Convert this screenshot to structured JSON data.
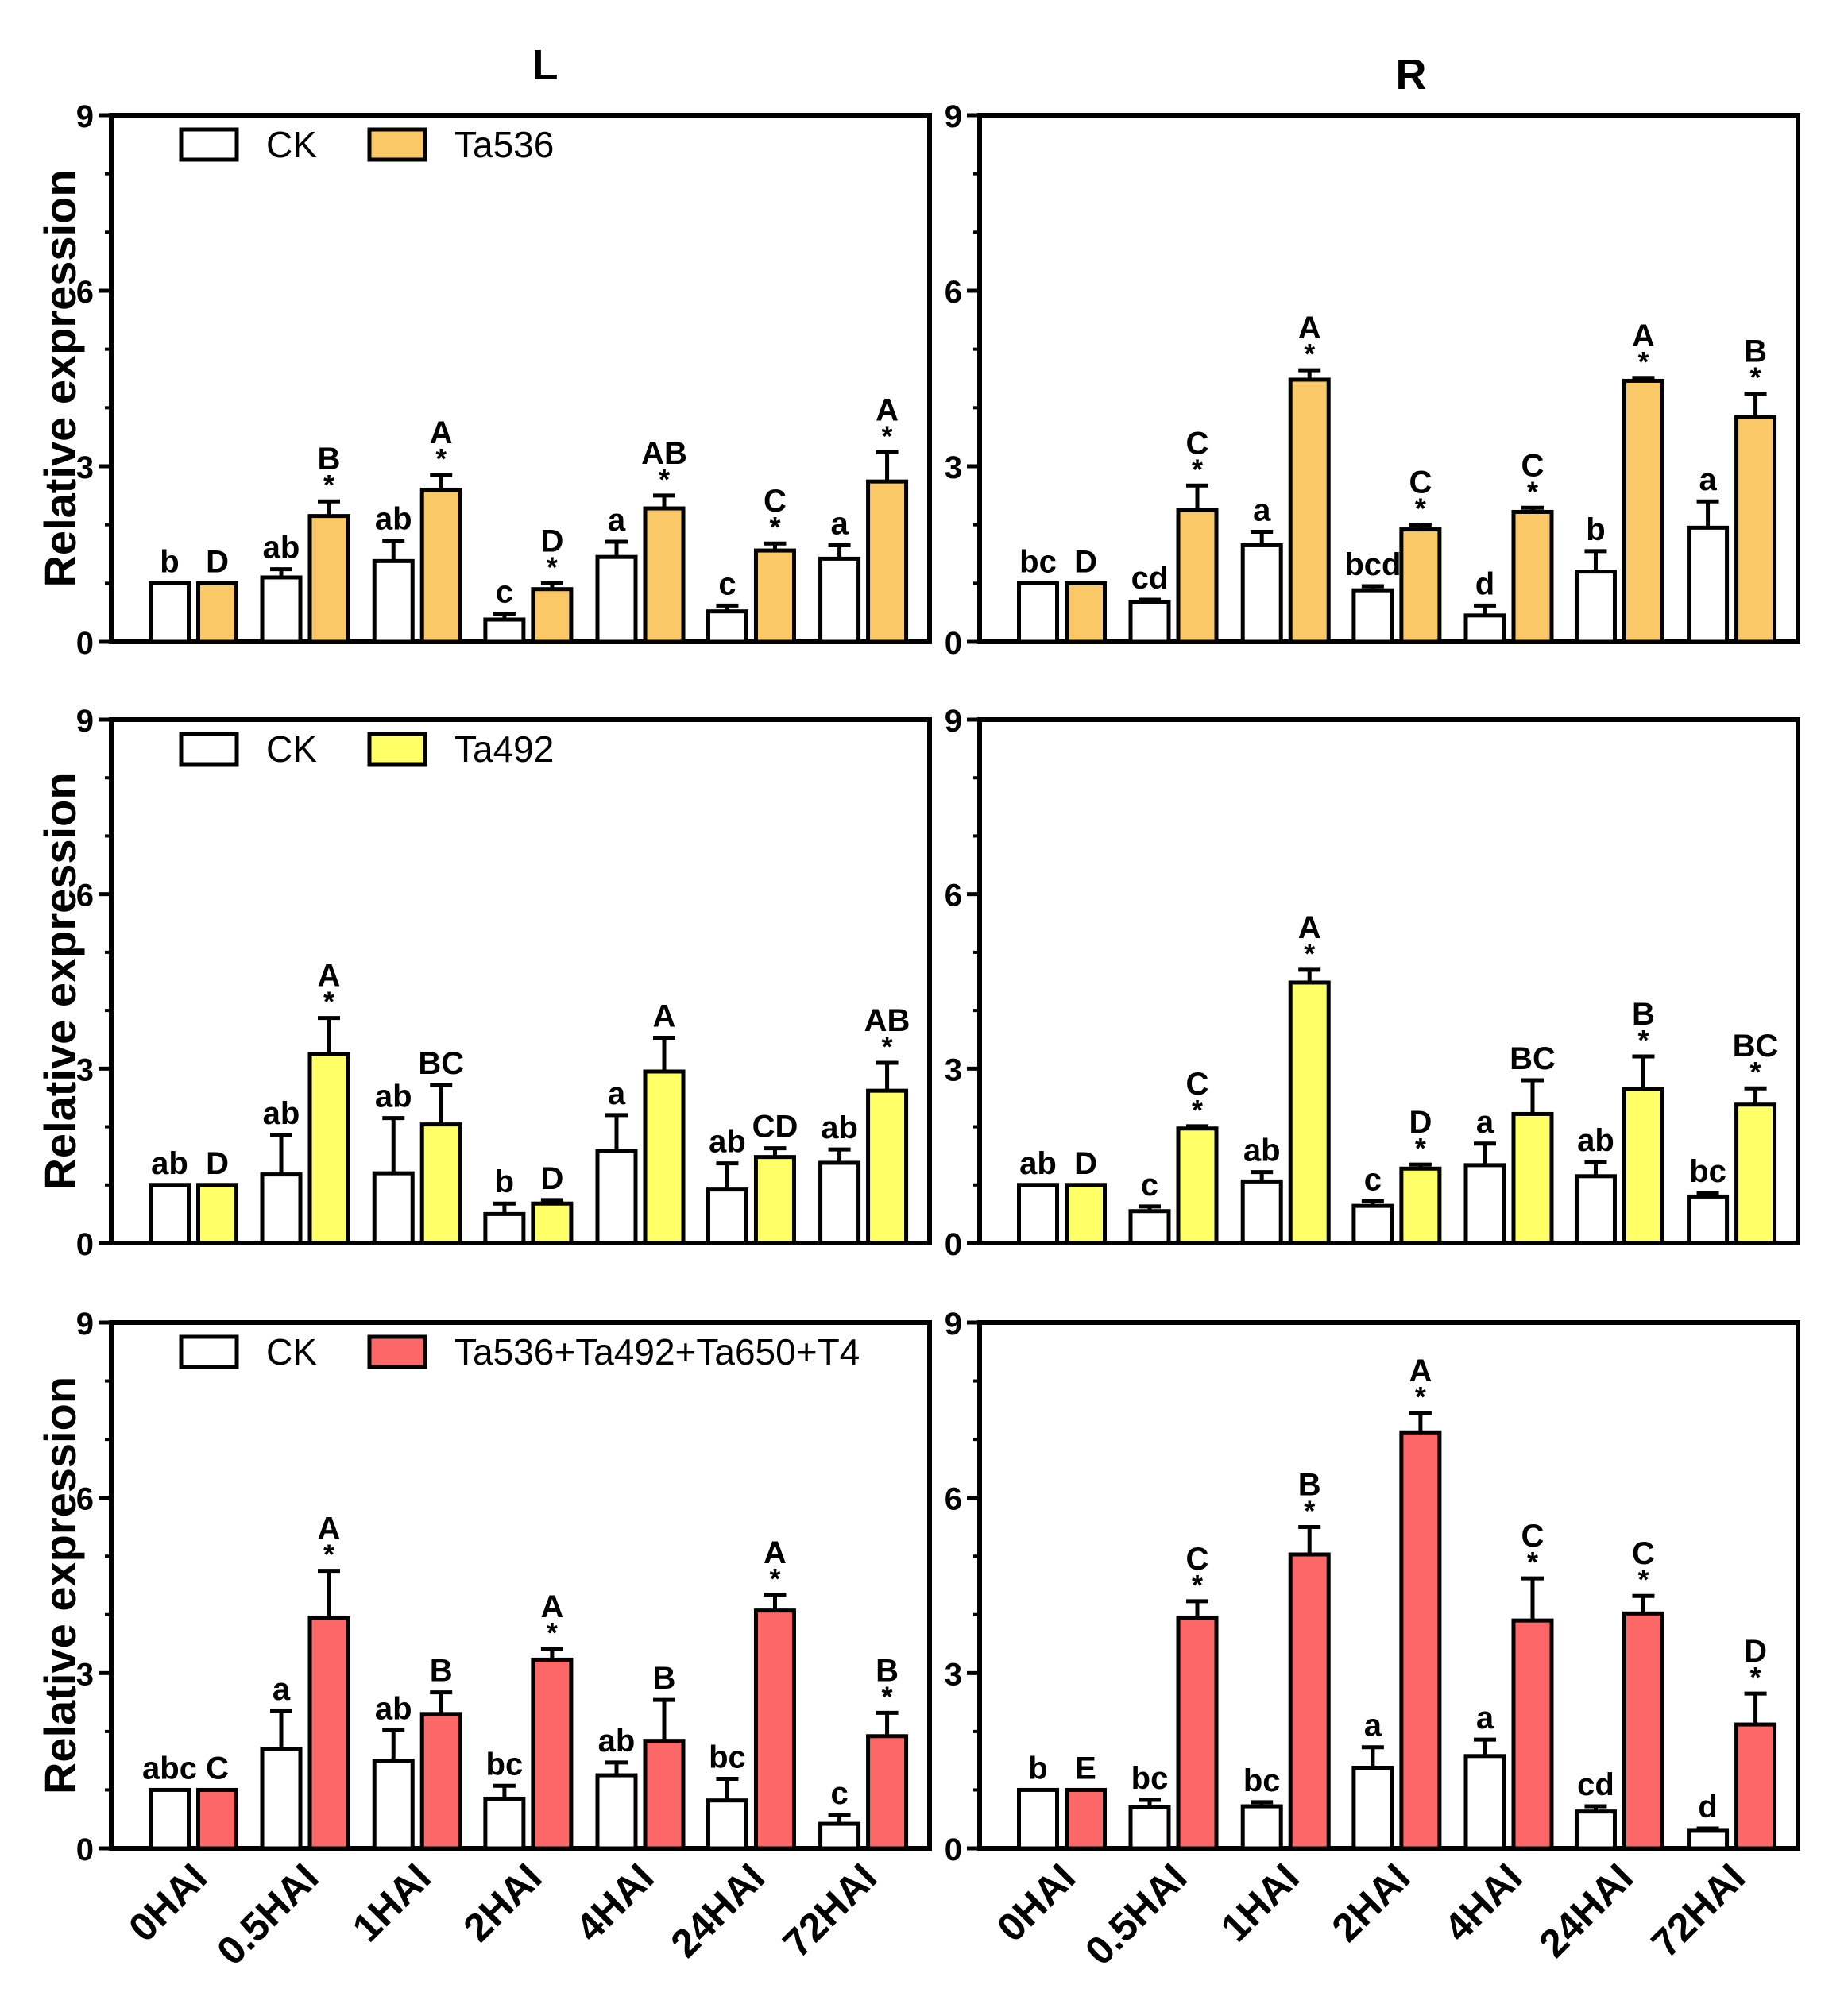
{
  "columns": [
    {
      "title": "L"
    },
    {
      "title": "R"
    }
  ],
  "y_axis_label": "Relative expression",
  "x_categories": [
    "0HAI",
    "0.5HAI",
    "1HAI",
    "2HAI",
    "4HAI",
    "24HAI",
    "72HAI"
  ],
  "colors": {
    "ck": "#ffffff",
    "ta536": "#fbc867",
    "ta492": "#ffff66",
    "mix": "#fd6767",
    "axis": "#000000"
  },
  "legends": [
    {
      "ck": "CK",
      "treatment": "Ta536"
    },
    {
      "ck": "CK",
      "treatment": "Ta492"
    },
    {
      "ck": "CK",
      "treatment": "Ta536+Ta492+Ta650+T4"
    }
  ],
  "chart_data": [
    {
      "type": "bar",
      "row": 0,
      "column": "L",
      "ylim": [
        0,
        9
      ],
      "yticks": [
        0,
        3,
        6,
        9
      ],
      "ylabel": "Relative expression",
      "categories": [
        "0HAI",
        "0.5HAI",
        "1HAI",
        "2HAI",
        "4HAI",
        "24HAI",
        "72HAI"
      ],
      "series": [
        {
          "name": "CK",
          "color_key": "ck",
          "values": [
            1.0,
            1.1,
            1.38,
            0.38,
            1.45,
            0.52,
            1.42
          ],
          "errors": [
            0,
            0.14,
            0.35,
            0.1,
            0.26,
            0.1,
            0.23
          ],
          "labels": [
            "b",
            "ab",
            "ab",
            "c",
            "a",
            "c",
            "a"
          ]
        },
        {
          "name": "Ta536",
          "color_key": "ta536",
          "values": [
            1.0,
            2.15,
            2.6,
            0.9,
            2.28,
            1.56,
            2.74
          ],
          "errors": [
            0,
            0.25,
            0.25,
            0.1,
            0.22,
            0.12,
            0.5
          ],
          "labels": [
            "D",
            "B",
            "A",
            "D",
            "AB",
            "C",
            "A"
          ],
          "stars": [
            false,
            true,
            true,
            true,
            true,
            true,
            true
          ]
        }
      ]
    },
    {
      "type": "bar",
      "row": 0,
      "column": "R",
      "ylim": [
        0,
        9
      ],
      "yticks": [
        0,
        3,
        6,
        9
      ],
      "categories": [
        "0HAI",
        "0.5HAI",
        "1HAI",
        "2HAI",
        "4HAI",
        "24HAI",
        "72HAI"
      ],
      "series": [
        {
          "name": "CK",
          "color_key": "ck",
          "values": [
            1.0,
            0.68,
            1.65,
            0.88,
            0.45,
            1.2,
            1.95
          ],
          "errors": [
            0,
            0.04,
            0.23,
            0.07,
            0.17,
            0.35,
            0.45
          ],
          "labels": [
            "bc",
            "cd",
            "a",
            "bcd",
            "d",
            "b",
            "a"
          ]
        },
        {
          "name": "Ta536",
          "color_key": "ta536",
          "values": [
            1.0,
            2.25,
            4.48,
            1.92,
            2.22,
            4.46,
            3.84
          ],
          "errors": [
            0,
            0.42,
            0.16,
            0.08,
            0.07,
            0.05,
            0.4
          ],
          "labels": [
            "D",
            "C",
            "A",
            "C",
            "C",
            "A",
            "B"
          ],
          "stars": [
            false,
            true,
            true,
            true,
            true,
            true,
            true
          ]
        }
      ]
    },
    {
      "type": "bar",
      "row": 1,
      "column": "L",
      "ylim": [
        0,
        9
      ],
      "yticks": [
        0,
        3,
        6,
        9
      ],
      "ylabel": "Relative expression",
      "categories": [
        "0HAI",
        "0.5HAI",
        "1HAI",
        "2HAI",
        "4HAI",
        "24HAI",
        "72HAI"
      ],
      "series": [
        {
          "name": "CK",
          "color_key": "ck",
          "values": [
            1.0,
            1.18,
            1.2,
            0.5,
            1.58,
            0.92,
            1.38
          ],
          "errors": [
            0,
            0.68,
            0.95,
            0.18,
            0.62,
            0.45,
            0.23
          ],
          "labels": [
            "ab",
            "ab",
            "ab",
            "b",
            "a",
            "ab",
            "ab"
          ]
        },
        {
          "name": "Ta492",
          "color_key": "ta492",
          "values": [
            1.0,
            3.25,
            2.04,
            0.68,
            2.95,
            1.48,
            2.62
          ],
          "errors": [
            0,
            0.62,
            0.68,
            0.06,
            0.58,
            0.15,
            0.48
          ],
          "labels": [
            "D",
            "A",
            "BC",
            "D",
            "A",
            "CD",
            "AB"
          ],
          "stars": [
            false,
            true,
            false,
            false,
            false,
            false,
            true
          ]
        }
      ]
    },
    {
      "type": "bar",
      "row": 1,
      "column": "R",
      "ylim": [
        0,
        9
      ],
      "yticks": [
        0,
        3,
        6,
        9
      ],
      "categories": [
        "0HAI",
        "0.5HAI",
        "1HAI",
        "2HAI",
        "4HAI",
        "24HAI",
        "72HAI"
      ],
      "series": [
        {
          "name": "CK",
          "color_key": "ck",
          "values": [
            1.0,
            0.55,
            1.06,
            0.64,
            1.34,
            1.15,
            0.8
          ],
          "errors": [
            0,
            0.08,
            0.16,
            0.08,
            0.37,
            0.24,
            0.06
          ],
          "labels": [
            "ab",
            "c",
            "ab",
            "c",
            "a",
            "ab",
            "bc"
          ]
        },
        {
          "name": "Ta492",
          "color_key": "ta492",
          "values": [
            1.0,
            1.97,
            4.48,
            1.28,
            2.22,
            2.65,
            2.38
          ],
          "errors": [
            0,
            0.04,
            0.22,
            0.07,
            0.58,
            0.56,
            0.28
          ],
          "labels": [
            "D",
            "C",
            "A",
            "D",
            "BC",
            "B",
            "BC"
          ],
          "stars": [
            false,
            true,
            true,
            true,
            false,
            true,
            true
          ]
        }
      ]
    },
    {
      "type": "bar",
      "row": 2,
      "column": "L",
      "ylim": [
        0,
        9
      ],
      "yticks": [
        0,
        3,
        6,
        9
      ],
      "ylabel": "Relative expression",
      "categories": [
        "0HAI",
        "0.5HAI",
        "1HAI",
        "2HAI",
        "4HAI",
        "24HAI",
        "72HAI"
      ],
      "series": [
        {
          "name": "CK",
          "color_key": "ck",
          "values": [
            1.0,
            1.7,
            1.5,
            0.85,
            1.25,
            0.82,
            0.42
          ],
          "errors": [
            0,
            0.65,
            0.52,
            0.22,
            0.22,
            0.37,
            0.15
          ],
          "labels": [
            "abc",
            "a",
            "ab",
            "bc",
            "ab",
            "bc",
            "c"
          ]
        },
        {
          "name": "Ta536+Ta492+Ta650+T4",
          "color_key": "mix",
          "values": [
            1.0,
            3.95,
            2.3,
            3.23,
            1.84,
            4.07,
            1.92
          ],
          "errors": [
            0,
            0.8,
            0.37,
            0.18,
            0.7,
            0.27,
            0.4
          ],
          "labels": [
            "C",
            "A",
            "B",
            "A",
            "B",
            "A",
            "B"
          ],
          "stars": [
            false,
            true,
            false,
            true,
            false,
            true,
            true
          ]
        }
      ]
    },
    {
      "type": "bar",
      "row": 2,
      "column": "R",
      "ylim": [
        0,
        9
      ],
      "yticks": [
        0,
        3,
        6,
        9
      ],
      "categories": [
        "0HAI",
        "0.5HAI",
        "1HAI",
        "2HAI",
        "4HAI",
        "24HAI",
        "72HAI"
      ],
      "series": [
        {
          "name": "CK",
          "color_key": "ck",
          "values": [
            1.0,
            0.7,
            0.72,
            1.38,
            1.58,
            0.63,
            0.3
          ],
          "errors": [
            0,
            0.13,
            0.07,
            0.35,
            0.28,
            0.09,
            0.04
          ],
          "labels": [
            "b",
            "bc",
            "bc",
            "a",
            "a",
            "cd",
            "d"
          ]
        },
        {
          "name": "Ta536+Ta492+Ta650+T4",
          "color_key": "mix",
          "values": [
            1.0,
            3.95,
            5.03,
            7.12,
            3.9,
            4.02,
            2.12
          ],
          "errors": [
            0,
            0.28,
            0.47,
            0.33,
            0.72,
            0.3,
            0.53
          ],
          "labels": [
            "E",
            "C",
            "B",
            "A",
            "C",
            "C",
            "D"
          ],
          "stars": [
            false,
            true,
            true,
            true,
            true,
            true,
            true
          ]
        }
      ]
    }
  ]
}
